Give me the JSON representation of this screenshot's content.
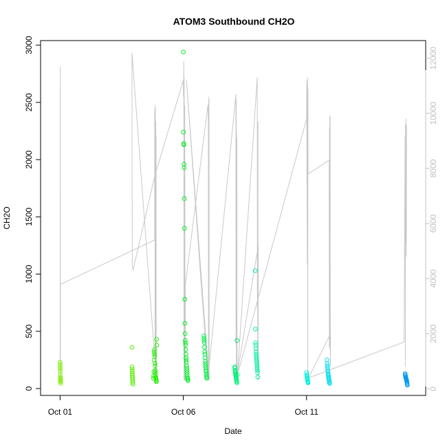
{
  "chart_data": {
    "type": "scatter",
    "title": "ATOM3 Southbound CH2O",
    "xlabel": "Date",
    "ylabel": "CH2O",
    "xlim": [
      "2017-09-30T05:00",
      "2017-10-15T20:00"
    ],
    "ylim": [
      -60,
      3040
    ],
    "y2lim": [
      -240,
      12640
    ],
    "x_ticks": [
      {
        "date": "2017-10-01",
        "label": "Oct 01"
      },
      {
        "date": "2017-10-06",
        "label": "Oct 06"
      },
      {
        "date": "2017-10-11",
        "label": "Oct 11"
      }
    ],
    "y_ticks": [
      0,
      500,
      1000,
      1500,
      2000,
      2500,
      3000
    ],
    "y2_ticks": [
      0,
      2000,
      4000,
      6000,
      8000,
      10000,
      12000
    ],
    "colors": {
      "axis": "#000000",
      "secondary_axis": "#c0c0c0",
      "altitude_line": "#c8c8c8"
    },
    "series": [
      {
        "role": "flight-1",
        "color": "#7fef00",
        "x": [
          "2017-10-01T00:00",
          "2017-10-01T00:03",
          "2017-10-01T00:06",
          "2017-10-01T00:09",
          "2017-10-01T00:12",
          "2017-10-01T00:15",
          "2017-10-01T00:18",
          "2017-10-01T00:21",
          "2017-10-01T00:24",
          "2017-10-01T00:27",
          "2017-10-01T00:30",
          "2017-10-01T00:33"
        ],
        "y": [
          230,
          210,
          190,
          170,
          150,
          120,
          100,
          90,
          80,
          70,
          60,
          45
        ]
      },
      {
        "role": "flight-2",
        "color": "#55ef00",
        "x": [
          "2017-10-03T22:00",
          "2017-10-03T22:05",
          "2017-10-03T22:10",
          "2017-10-03T22:15",
          "2017-10-03T22:20",
          "2017-10-03T22:25",
          "2017-10-03T22:30",
          "2017-10-03T22:35",
          "2017-10-03T22:40",
          "2017-10-03T22:45",
          "2017-10-03T22:50"
        ],
        "y": [
          360,
          190,
          170,
          150,
          130,
          115,
          100,
          85,
          70,
          55,
          40
        ]
      },
      {
        "role": "flight-3",
        "color": "#22ef00",
        "x": [
          "2017-10-04T19:00",
          "2017-10-04T19:10",
          "2017-10-04T19:20",
          "2017-10-04T19:30",
          "2017-10-04T19:40",
          "2017-10-04T19:50",
          "2017-10-04T20:00",
          "2017-10-04T20:10",
          "2017-10-04T20:20",
          "2017-10-04T20:30",
          "2017-10-04T20:40",
          "2017-10-04T20:50",
          "2017-10-04T21:00",
          "2017-10-04T21:10",
          "2017-10-04T21:20",
          "2017-10-04T21:30",
          "2017-10-04T21:40",
          "2017-10-04T21:50",
          "2017-10-04T22:00",
          "2017-10-04T22:10"
        ],
        "y": [
          90,
          110,
          150,
          250,
          320,
          340,
          300,
          280,
          220,
          200,
          160,
          140,
          120,
          100,
          90,
          80,
          70,
          60,
          430,
          380
        ]
      },
      {
        "role": "flight-4",
        "color": "#00ef22",
        "x": [
          "2017-10-06T00:00",
          "2017-10-06T00:10",
          "2017-10-06T00:20",
          "2017-10-06T00:30",
          "2017-10-06T00:40",
          "2017-10-06T00:50",
          "2017-10-06T01:00",
          "2017-10-06T01:10",
          "2017-10-06T01:20",
          "2017-10-06T01:30",
          "2017-10-06T01:40",
          "2017-10-06T01:50",
          "2017-10-06T02:00",
          "2017-10-06T02:10",
          "2017-10-06T02:20",
          "2017-10-06T02:30",
          "2017-10-06T02:40",
          "2017-10-06T02:50",
          "2017-10-06T03:00",
          "2017-10-06T03:10",
          "2017-10-06T03:20",
          "2017-10-06T03:30",
          "2017-10-06T03:40",
          "2017-10-06T03:50",
          "2017-10-06T04:00",
          "2017-10-06T04:10",
          "2017-10-06T04:20",
          "2017-10-06T04:30"
        ],
        "y": [
          2940,
          2240,
          2140,
          2130,
          1960,
          1930,
          1660,
          1400,
          780,
          570,
          480,
          420,
          400,
          380,
          340,
          300,
          270,
          250,
          230,
          200,
          180,
          160,
          140,
          120,
          100,
          90,
          80,
          70
        ]
      },
      {
        "role": "flight-5",
        "color": "#00ef44",
        "x": [
          "2017-10-06T20:00",
          "2017-10-06T20:10",
          "2017-10-06T20:20",
          "2017-10-06T20:30",
          "2017-10-06T20:40",
          "2017-10-06T20:50",
          "2017-10-06T21:00",
          "2017-10-06T21:10",
          "2017-10-06T21:20",
          "2017-10-06T21:30",
          "2017-10-06T21:40",
          "2017-10-06T21:50",
          "2017-10-06T22:00",
          "2017-10-06T22:10",
          "2017-10-06T22:20",
          "2017-10-06T22:30",
          "2017-10-06T22:40",
          "2017-10-06T22:50"
        ],
        "y": [
          460,
          440,
          420,
          400,
          360,
          320,
          300,
          270,
          240,
          220,
          200,
          180,
          160,
          150,
          130,
          110,
          100,
          90
        ]
      },
      {
        "role": "flight-6",
        "color": "#00ef77",
        "x": [
          "2017-10-08T02:00",
          "2017-10-08T02:10",
          "2017-10-08T02:20",
          "2017-10-08T02:30",
          "2017-10-08T02:40",
          "2017-10-08T02:50",
          "2017-10-08T03:00",
          "2017-10-08T03:10",
          "2017-10-08T03:20",
          "2017-10-08T03:30",
          "2017-10-08T03:40",
          "2017-10-08T03:50",
          "2017-10-08T04:00",
          "2017-10-08T04:10",
          "2017-10-08T04:20",
          "2017-10-08T04:30"
        ],
        "y": [
          190,
          180,
          160,
          150,
          140,
          130,
          120,
          110,
          100,
          90,
          80,
          70,
          60,
          50,
          420,
          120
        ]
      },
      {
        "role": "flight-7",
        "color": "#00ef99",
        "x": [
          "2017-10-08T22:00",
          "2017-10-08T22:10",
          "2017-10-08T22:20",
          "2017-10-08T22:30",
          "2017-10-08T22:40",
          "2017-10-08T22:50",
          "2017-10-08T23:00",
          "2017-10-08T23:10",
          "2017-10-08T23:20",
          "2017-10-08T23:30",
          "2017-10-08T23:40",
          "2017-10-08T23:50",
          "2017-10-09T00:00",
          "2017-10-09T00:10",
          "2017-10-09T00:20",
          "2017-10-09T00:30"
        ],
        "y": [
          1030,
          520,
          400,
          380,
          350,
          320,
          300,
          280,
          260,
          240,
          220,
          200,
          180,
          160,
          140,
          100
        ]
      },
      {
        "role": "flight-8",
        "color": "#00efdd",
        "x": [
          "2017-10-11T00:00",
          "2017-10-11T00:10",
          "2017-10-11T00:20",
          "2017-10-11T00:30",
          "2017-10-11T00:40",
          "2017-10-11T00:50",
          "2017-10-11T01:00",
          "2017-10-11T01:10",
          "2017-10-11T01:20",
          "2017-10-11T01:30"
        ],
        "y": [
          140,
          120,
          110,
          100,
          90,
          80,
          70,
          60,
          55,
          50
        ]
      },
      {
        "role": "flight-9",
        "color": "#00ddef",
        "x": [
          "2017-10-11T20:00",
          "2017-10-11T20:10",
          "2017-10-11T20:20",
          "2017-10-11T20:30",
          "2017-10-11T20:40",
          "2017-10-11T20:50",
          "2017-10-11T21:00",
          "2017-10-11T21:10",
          "2017-10-11T21:20",
          "2017-10-11T21:30",
          "2017-10-11T21:40",
          "2017-10-11T21:50",
          "2017-10-11T22:00",
          "2017-10-11T22:10",
          "2017-10-11T22:20",
          "2017-10-11T22:30"
        ],
        "y": [
          250,
          220,
          200,
          180,
          160,
          150,
          130,
          120,
          110,
          100,
          90,
          80,
          70,
          60,
          50,
          45
        ]
      },
      {
        "role": "flight-10",
        "color": "#0099ef",
        "x": [
          "2017-10-15T00:00",
          "2017-10-15T00:10",
          "2017-10-15T00:20",
          "2017-10-15T00:30",
          "2017-10-15T00:40",
          "2017-10-15T00:50",
          "2017-10-15T01:00",
          "2017-10-15T01:10",
          "2017-10-15T01:20",
          "2017-10-15T01:30",
          "2017-10-15T01:40",
          "2017-10-15T01:50",
          "2017-10-15T02:00",
          "2017-10-15T02:10"
        ],
        "y": [
          130,
          120,
          110,
          100,
          95,
          90,
          85,
          80,
          75,
          70,
          60,
          50,
          40,
          30
        ]
      }
    ],
    "secondary_series": {
      "role": "altitude",
      "color": "#c8c8c8",
      "axis": "right",
      "x": [
        "2017-10-01T00:00",
        "2017-10-01T00:05",
        "2017-10-01T00:08",
        "2017-10-01T00:11",
        "2017-10-01T00:13",
        "2017-10-01T00:16",
        "2017-10-01T00:20",
        "2017-10-01T01:00",
        "2017-10-04T20:00",
        "2017-10-04T20:10",
        "2017-10-04T20:20",
        "2017-10-04T20:30",
        "2017-10-04T20:40",
        "2017-10-04T20:50",
        "2017-10-04T21:00",
        "2017-10-04T21:10",
        "2017-10-04T21:20",
        "2017-10-04T21:30",
        "2017-10-04T21:40",
        "2017-10-03T22:00",
        "2017-10-03T22:10",
        "2017-10-03T22:20",
        "2017-10-03T23:00",
        "2017-10-04T20:00",
        "2017-10-06T00:00",
        "2017-10-06T00:10",
        "2017-10-06T00:20",
        "2017-10-06T00:30",
        "2017-10-06T00:40",
        "2017-10-06T00:50",
        "2017-10-06T01:00",
        "2017-10-06T01:10",
        "2017-10-06T01:20",
        "2017-10-06T01:30",
        "2017-10-06T01:40",
        "2017-10-06T02:00",
        "2017-10-07T00:00",
        "2017-10-07T00:10",
        "2017-10-07T00:20",
        "2017-10-07T00:30",
        "2017-10-07T00:40",
        "2017-10-07T00:50",
        "2017-10-07T01:00",
        "2017-10-07T01:10",
        "2017-10-06T03:00",
        "2017-10-07T00:00",
        "2017-10-08T03:00",
        "2017-10-08T03:10",
        "2017-10-08T03:20",
        "2017-10-08T03:30",
        "2017-10-08T03:40",
        "2017-10-08T03:50",
        "2017-10-08T04:00",
        "2017-10-08T04:10",
        "2017-10-08T04:20",
        "2017-10-09T00:00",
        "2017-10-09T00:10",
        "2017-10-09T00:20",
        "2017-10-09T00:30",
        "2017-10-09T00:40",
        "2017-10-09T00:50",
        "2017-10-09T01:00",
        "2017-10-08T04:00",
        "2017-10-11T00:00",
        "2017-10-11T00:10",
        "2017-10-11T00:20",
        "2017-10-11T00:30",
        "2017-10-11T00:40",
        "2017-10-11T00:50",
        "2017-10-11T01:00",
        "2017-10-11T01:10",
        "2017-10-11T01:20",
        "2017-10-11T01:30",
        "2017-10-11T22:00",
        "2017-10-11T22:10",
        "2017-10-11T22:20",
        "2017-10-11T22:30",
        "2017-10-11T22:40",
        "2017-10-11T22:50",
        "2017-10-11T23:00",
        "2017-10-11T23:10",
        "2017-10-11T23:20",
        "2017-10-11T02:00",
        "2017-10-14T23:00",
        "2017-10-15T00:00",
        "2017-10-15T00:10",
        "2017-10-15T00:20",
        "2017-10-15T00:30",
        "2017-10-15T00:40",
        "2017-10-15T00:50",
        "2017-10-15T01:00",
        "2017-10-15T01:10",
        "2017-10-15T01:20"
      ],
      "y": [
        200,
        5300,
        11500,
        11700,
        3000,
        200,
        3800,
        3800,
        5400,
        10100,
        10200,
        300,
        10300,
        9500,
        400,
        9700,
        200,
        9200,
        400,
        12200,
        5700,
        4500,
        4300,
        7700,
        11200,
        10600,
        11300,
        11900,
        300,
        11300,
        8000,
        300,
        10300,
        7700,
        300,
        3800,
        10300,
        9900,
        10100,
        400,
        10500,
        400,
        10600,
        300,
        11200,
        400,
        10600,
        10700,
        1600,
        10500,
        400,
        9300,
        3200,
        9100,
        300,
        11300,
        2900,
        9000,
        600,
        9700,
        300,
        5200,
        400,
        9800,
        11200,
        7500,
        8100,
        4500,
        10700,
        11300,
        400,
        10900,
        7800,
        8300,
        1500,
        9500,
        4800,
        9900,
        1400,
        9900,
        800,
        2000,
        400,
        1700,
        9200,
        800,
        9600,
        7000,
        9800,
        5300,
        9600,
        4800,
        9600
      ]
    }
  }
}
